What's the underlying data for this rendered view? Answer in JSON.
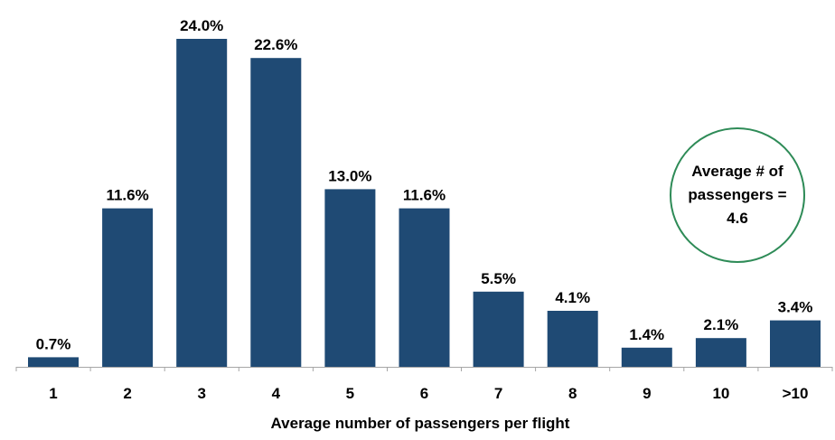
{
  "chart_data": {
    "type": "bar",
    "categories": [
      "1",
      "2",
      "3",
      "4",
      "5",
      "6",
      "7",
      "8",
      "9",
      "10",
      ">10"
    ],
    "values": [
      0.7,
      11.6,
      24.0,
      22.6,
      13.0,
      11.6,
      5.5,
      4.1,
      1.4,
      2.1,
      3.4
    ],
    "data_labels": [
      "0.7%",
      "11.6%",
      "24.0%",
      "22.6%",
      "13.0%",
      "11.6%",
      "5.5%",
      "4.1%",
      "1.4%",
      "2.1%",
      "3.4%"
    ],
    "title": "",
    "xlabel": "Average number of passengers per flight",
    "ylabel": "",
    "ylim": [
      0,
      26
    ],
    "grid": false,
    "bar_color": "#1f4a74"
  },
  "callout": {
    "lines": [
      "Average # of",
      "passengers =",
      "4.6"
    ],
    "border_color": "#2e8b57"
  }
}
